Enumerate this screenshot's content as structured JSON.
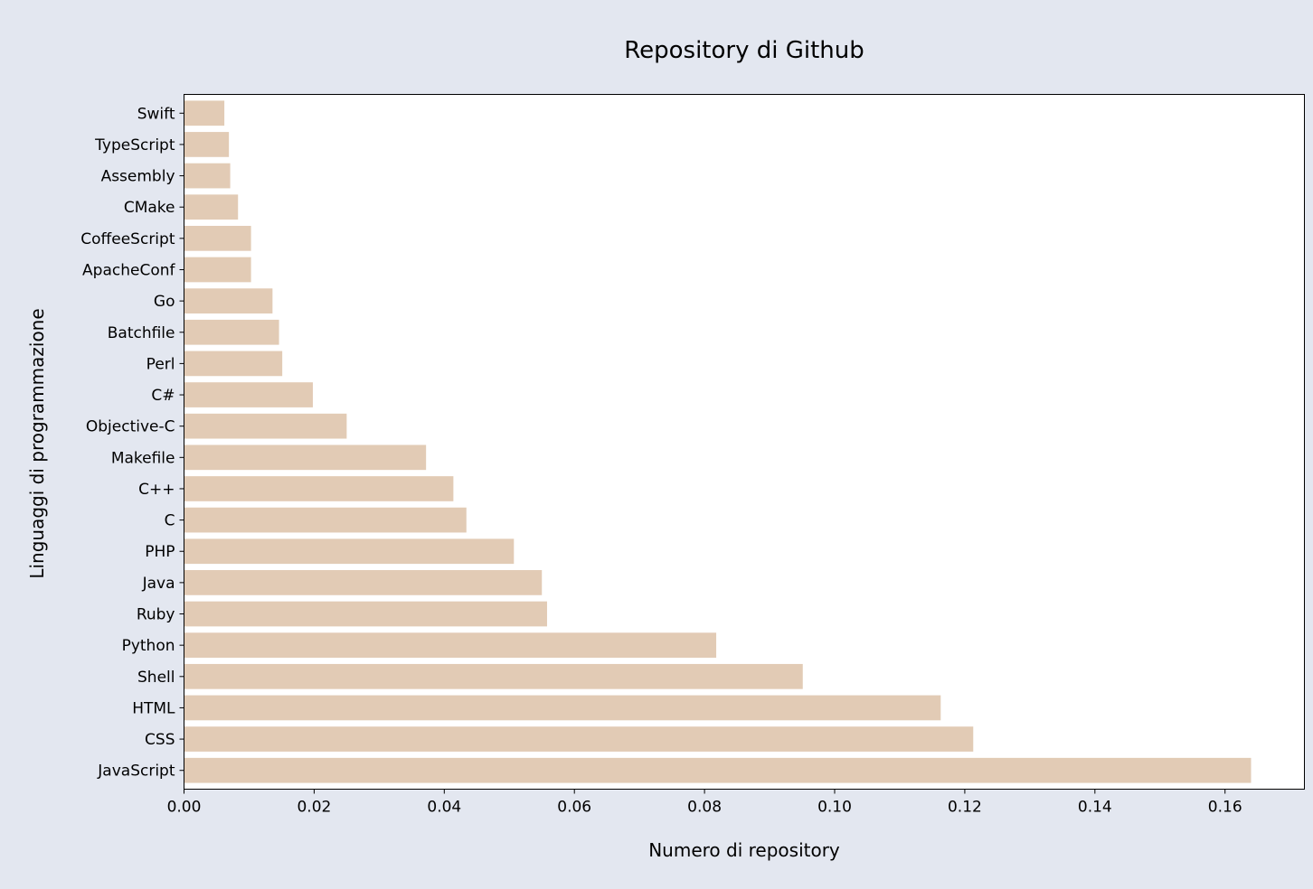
{
  "chart_data": {
    "type": "bar",
    "orientation": "horizontal",
    "title": "Repository di Github",
    "xlabel": "Numero di repository",
    "ylabel": "Linguaggi di programmazione",
    "categories": [
      "JavaScript",
      "CSS",
      "HTML",
      "Shell",
      "Python",
      "Ruby",
      "Java",
      "PHP",
      "C",
      "C++",
      "Makefile",
      "Objective-C",
      "C#",
      "Perl",
      "Batchfile",
      "Go",
      "ApacheConf",
      "CoffeeScript",
      "CMake",
      "Assembly",
      "TypeScript",
      "Swift"
    ],
    "values": [
      0.164,
      0.1213,
      0.1163,
      0.0951,
      0.0818,
      0.0558,
      0.055,
      0.0507,
      0.0434,
      0.0414,
      0.0372,
      0.025,
      0.0198,
      0.0151,
      0.0146,
      0.0136,
      0.0103,
      0.0103,
      0.0083,
      0.0071,
      0.0069,
      0.0062
    ],
    "xlim": [
      0,
      0.1722
    ],
    "xticks": [
      "0.00",
      "0.02",
      "0.04",
      "0.06",
      "0.08",
      "0.10",
      "0.12",
      "0.14",
      "0.16"
    ],
    "xtick_values": [
      0,
      0.02,
      0.04,
      0.06,
      0.08,
      0.1,
      0.12,
      0.14,
      0.16
    ],
    "grid": false,
    "legend": "none",
    "colors": {
      "bar": "#e2cbb5",
      "background": "#e3e7f0",
      "plot": "#ffffff"
    }
  }
}
